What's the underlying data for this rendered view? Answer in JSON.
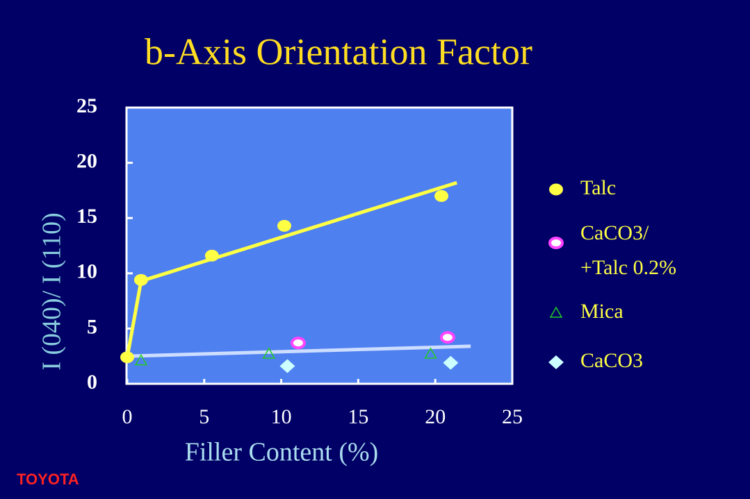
{
  "chart_data": {
    "type": "scatter",
    "title": "b-Axis  Orientation  Factor",
    "x_label": "Filler Content  (%)",
    "y_label": "I (040)/ I (110)",
    "logo": "TOYOTA",
    "xlim": [
      0,
      25
    ],
    "xticks": [
      0,
      5,
      10,
      15,
      20,
      25
    ],
    "ylim": [
      0,
      25
    ],
    "yticks": [
      0,
      5,
      10,
      15,
      20,
      25
    ],
    "legend": "right",
    "series": [
      {
        "name": "Talc",
        "color": "#ffff44",
        "marker": "circle",
        "x": [
          0,
          0.9,
          5.5,
          10.2,
          20.4
        ],
        "values": [
          2.4,
          9.4,
          11.6,
          14.3,
          17.0
        ]
      },
      {
        "name": "CaCO3/ +Talc 0.2%",
        "color": "#ff44ff",
        "marker": "ring",
        "x": [
          11.1,
          20.8
        ],
        "values": [
          3.7,
          4.2
        ]
      },
      {
        "name": "Mica",
        "color": "#22cc22",
        "marker": "triangle",
        "x": [
          0.9,
          9.2,
          19.7
        ],
        "values": [
          2.1,
          2.7,
          2.7
        ]
      },
      {
        "name": "CaCO3",
        "color": "#ccffff",
        "marker": "diamond",
        "x": [
          10.4,
          21.0
        ],
        "values": [
          1.6,
          1.9
        ]
      }
    ],
    "fit_lines": [
      {
        "color": "#ffff44",
        "x": [
          0,
          0.9,
          21.4
        ],
        "values": [
          2.4,
          9.3,
          18.2
        ]
      },
      {
        "color": "#ccddff",
        "x": [
          0,
          22.3
        ],
        "values": [
          2.5,
          3.4
        ]
      }
    ]
  }
}
